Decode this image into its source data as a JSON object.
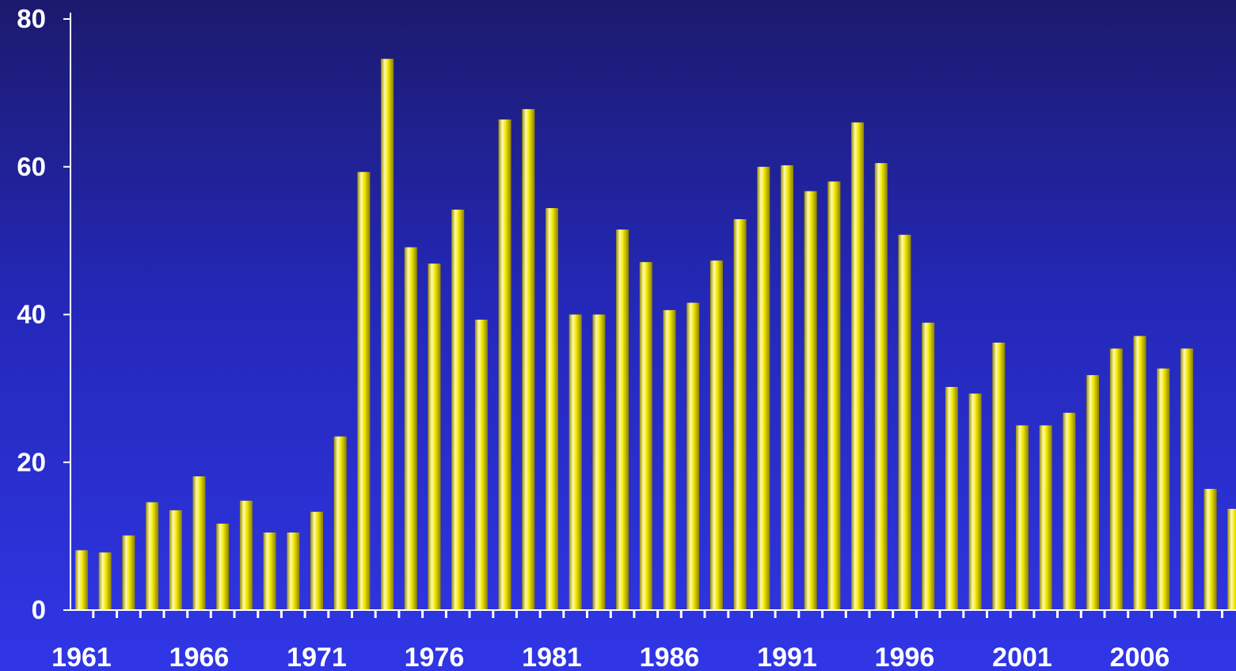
{
  "colors": {
    "bar": "#f2ea00",
    "bar_highlight": "#fffbb0",
    "bar_shadow": "#8a7f00",
    "axis": "#ffffff",
    "text": "#ffffff"
  },
  "chart_data": {
    "type": "bar",
    "title": "",
    "xlabel": "",
    "ylabel": "",
    "ylim": [
      0,
      80
    ],
    "yticks": [
      0,
      20,
      40,
      60,
      80
    ],
    "grid": false,
    "legend": "none",
    "x_tick_labels": [
      "1961",
      "1966",
      "1971",
      "1976",
      "1981",
      "1986",
      "1991",
      "1996",
      "2001",
      "2006"
    ],
    "categories": [
      "1961",
      "1962",
      "1963",
      "1964",
      "1965",
      "1966",
      "1967",
      "1968",
      "1969",
      "1970",
      "1971",
      "1972",
      "1973",
      "1974",
      "1975",
      "1976",
      "1977",
      "1978",
      "1979",
      "1980",
      "1981",
      "1982",
      "1983",
      "1984",
      "1985",
      "1986",
      "1987",
      "1988",
      "1989",
      "1990",
      "1991",
      "1992",
      "1993",
      "1994",
      "1995",
      "1996",
      "1997",
      "1998",
      "1999",
      "2000",
      "2001",
      "2002",
      "2003",
      "2004",
      "2005",
      "2006",
      "2007",
      "2008",
      "2009",
      "2010"
    ],
    "values": [
      8.1,
      7.8,
      10.1,
      14.6,
      13.5,
      18.1,
      11.7,
      14.8,
      10.5,
      10.5,
      13.3,
      23.5,
      59.3,
      74.6,
      49.1,
      46.9,
      54.2,
      39.3,
      66.4,
      67.8,
      54.4,
      40.0,
      40.0,
      51.5,
      47.1,
      40.6,
      41.6,
      47.3,
      52.9,
      60.0,
      60.2,
      56.7,
      58.0,
      66.0,
      60.5,
      50.8,
      38.9,
      30.2,
      29.3,
      36.2,
      25.0,
      25.0,
      26.7,
      31.8,
      35.4,
      37.1,
      32.7,
      35.4,
      16.4,
      13.7
    ]
  }
}
